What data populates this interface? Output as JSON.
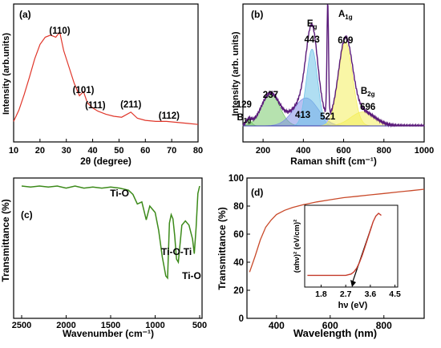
{
  "colors": {
    "xrd_line": "#e0362a",
    "xrd_dark": "#3a1f10",
    "raman_main": "#5a1a7a",
    "raman_peak": "#4a2aa8",
    "raman_fill_eg": "#6fc2e8",
    "raman_fill_a1g": "#f4ee5c",
    "raman_fill_b1g": "#7acb6e",
    "raman_fill_mid": "#7f8ee6",
    "raman_baseline": "#3a3aa8",
    "ftir_line": "#3c8a1a",
    "uv_line": "#c94a2a",
    "inset_line": "#c43a2a",
    "axis": "#000000"
  },
  "chart_data": [
    {
      "type": "line",
      "panel_label": "(a)",
      "xlabel": "2θ (degree)",
      "ylabel": "Intensity (arb.units)",
      "xlim": [
        10,
        80
      ],
      "xticks": [
        10,
        20,
        30,
        40,
        50,
        60,
        70,
        80
      ],
      "x": [
        10,
        12,
        14,
        16,
        18,
        20,
        22,
        24,
        26,
        27.5,
        29,
        31,
        33,
        35,
        36.5,
        38,
        40,
        42,
        45,
        48,
        51,
        54.5,
        57,
        60,
        64,
        68,
        72,
        76,
        80
      ],
      "y": [
        0.13,
        0.24,
        0.39,
        0.56,
        0.74,
        0.88,
        0.95,
        0.97,
        0.95,
        1.0,
        0.82,
        0.66,
        0.5,
        0.38,
        0.42,
        0.31,
        0.26,
        0.23,
        0.2,
        0.18,
        0.17,
        0.22,
        0.16,
        0.14,
        0.13,
        0.13,
        0.12,
        0.11,
        0.1
      ],
      "annotations": [
        {
          "text": "(110)",
          "x": 27.5
        },
        {
          "text": "(101)",
          "x": 36.5
        },
        {
          "text": "(111)",
          "x": 41
        },
        {
          "text": "(211)",
          "x": 54.5
        },
        {
          "text": "(112)",
          "x": 69
        }
      ]
    },
    {
      "type": "line",
      "panel_label": "(b)",
      "xlabel": "Raman shift (cm⁻¹)",
      "ylabel": "Intensity (arb. units)",
      "xlim": [
        100,
        1000
      ],
      "xticks": [
        200,
        400,
        600,
        800,
        1000
      ],
      "peaks": [
        {
          "label": "B1g",
          "position": 129,
          "height": 0.05
        },
        {
          "label": "",
          "position": 237,
          "height": 0.28
        },
        {
          "label": "",
          "position": 413,
          "height": 0.24
        },
        {
          "label": "Eg",
          "position": 443,
          "height": 0.66
        },
        {
          "label": "",
          "position": 521,
          "height": 0.98
        },
        {
          "label": "A1g",
          "position": 609,
          "height": 0.72
        },
        {
          "label": "B2g",
          "position": 696,
          "height": 0.12
        }
      ],
      "peak_labels": [
        {
          "name": "B",
          "sub": "1g",
          "value": "129"
        },
        {
          "name": "",
          "sub": "",
          "value": "237"
        },
        {
          "name": "",
          "sub": "",
          "value": "413"
        },
        {
          "name": "E",
          "sub": "g",
          "value": "443"
        },
        {
          "name": "",
          "sub": "",
          "value": "521"
        },
        {
          "name": "A",
          "sub": "1g",
          "value": "609"
        },
        {
          "name": "B",
          "sub": "2g",
          "value": "696"
        }
      ]
    },
    {
      "type": "line",
      "panel_label": "(c)",
      "xlabel": "Wavenumber (cm⁻¹)",
      "ylabel": "Transmittance (%)",
      "xlim": [
        2500,
        500
      ],
      "xticks": [
        2500,
        2000,
        1500,
        1000,
        500
      ],
      "x": [
        2500,
        2400,
        2300,
        2200,
        2100,
        2000,
        1900,
        1800,
        1700,
        1600,
        1500,
        1400,
        1300,
        1250,
        1200,
        1150,
        1100,
        1060,
        1000,
        960,
        920,
        880,
        860,
        840,
        820,
        800,
        780,
        760,
        740,
        700,
        660,
        620,
        580,
        560,
        540,
        520,
        500
      ],
      "y": [
        0.97,
        0.96,
        0.97,
        0.96,
        0.97,
        0.95,
        0.97,
        0.95,
        0.96,
        0.95,
        0.96,
        0.95,
        0.93,
        0.89,
        0.8,
        0.82,
        0.65,
        0.78,
        0.72,
        0.55,
        0.3,
        0.12,
        0.1,
        0.62,
        0.7,
        0.66,
        0.5,
        0.28,
        0.25,
        0.6,
        0.64,
        0.6,
        0.47,
        0.33,
        0.58,
        0.9,
        0.97
      ],
      "annotations": [
        {
          "text": "Ti-O",
          "x": 1400
        },
        {
          "text": "Ti-O-Ti",
          "x": 750
        },
        {
          "text": "Ti-O",
          "x": 640
        }
      ]
    },
    {
      "type": "line",
      "panel_label": "(d)",
      "xlabel": "Wavelength (nm)",
      "ylabel": "Transmittance (%)",
      "xlim": [
        290,
        950
      ],
      "ylim": [
        0,
        100
      ],
      "xticks": [
        400,
        600,
        800
      ],
      "yticks": [
        0,
        20,
        40,
        60,
        80,
        100
      ],
      "x": [
        300,
        320,
        340,
        360,
        380,
        400,
        430,
        460,
        500,
        550,
        600,
        650,
        700,
        750,
        800,
        850,
        900,
        950
      ],
      "y": [
        33,
        44,
        56,
        65,
        70,
        74,
        77,
        79,
        81,
        83,
        84.5,
        86,
        87,
        88,
        89,
        90,
        91,
        92
      ],
      "inset": {
        "xlabel": "hν (eV)",
        "ylabel": "(αhν)² (eV/cm)²",
        "xlim": [
          1.2,
          4.6
        ],
        "xticks": [
          1.8,
          2.7,
          3.6,
          4.5
        ],
        "x": [
          1.3,
          1.8,
          2.3,
          2.7,
          2.9,
          3.0,
          3.1,
          3.2,
          3.3,
          3.4,
          3.5,
          3.6,
          3.7,
          3.8,
          3.9,
          4.0
        ],
        "y": [
          0.12,
          0.12,
          0.12,
          0.12,
          0.14,
          0.17,
          0.22,
          0.3,
          0.4,
          0.52,
          0.64,
          0.76,
          0.88,
          0.96,
          1.0,
          0.97
        ],
        "tangent_intercept_ev": 2.9
      }
    }
  ]
}
